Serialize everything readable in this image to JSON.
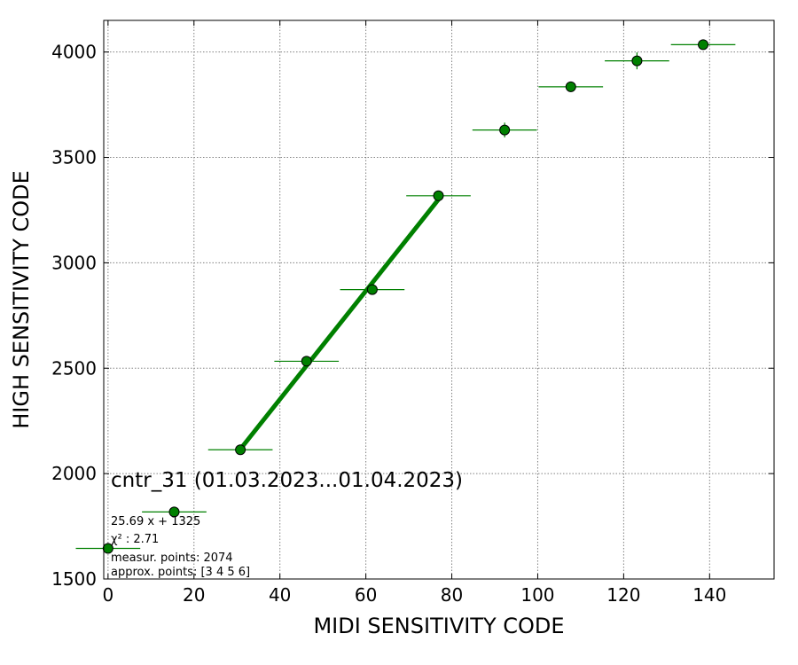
{
  "chart_data": {
    "type": "scatter",
    "title": "cntr_31 (01.03.2023...01.04.2023)",
    "xlabel": "MIDI SENSITIVITY CODE",
    "ylabel": "HIGH SENSITIVITY CODE",
    "xlim": [
      -1,
      155
    ],
    "ylim": [
      1500,
      4150
    ],
    "xticks": [
      0,
      20,
      40,
      60,
      80,
      100,
      120,
      140
    ],
    "yticks": [
      1500,
      2000,
      2500,
      3000,
      3500,
      4000
    ],
    "grid": true,
    "points": [
      {
        "x": 0,
        "y": 1645,
        "xerr": 7.5,
        "yerr": 10
      },
      {
        "x": 15.4,
        "y": 1818,
        "xerr": 7.5,
        "yerr": 12
      },
      {
        "x": 30.8,
        "y": 2113,
        "xerr": 7.5,
        "yerr": 12
      },
      {
        "x": 46.2,
        "y": 2533,
        "xerr": 7.5,
        "yerr": 15
      },
      {
        "x": 61.5,
        "y": 2873,
        "xerr": 7.5,
        "yerr": 15
      },
      {
        "x": 76.9,
        "y": 3318,
        "xerr": 7.5,
        "yerr": 20
      },
      {
        "x": 92.3,
        "y": 3630,
        "xerr": 7.5,
        "yerr": 35
      },
      {
        "x": 107.7,
        "y": 3835,
        "xerr": 7.5,
        "yerr": 25
      },
      {
        "x": 123.1,
        "y": 3958,
        "xerr": 7.5,
        "yerr": 40
      },
      {
        "x": 138.5,
        "y": 4035,
        "xerr": 7.5,
        "yerr": 20
      }
    ],
    "fit": {
      "slope": 25.69,
      "intercept": 1325,
      "x_range": [
        30.8,
        76.9
      ]
    },
    "colors": {
      "marker": "#008000",
      "marker_edge": "#000000",
      "fit_line": "#008000",
      "errorbar": "#008000"
    },
    "annotations": [
      "25.69 x + 1325",
      "χ² : 2.71",
      "measur. points: 2074",
      "approx. points: [3 4 5 6]"
    ]
  }
}
